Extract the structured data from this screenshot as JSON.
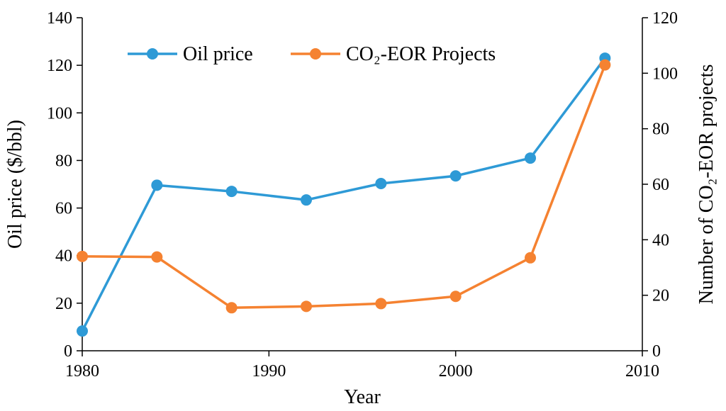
{
  "chart_data": {
    "type": "line",
    "title": "",
    "xlabel": "Year",
    "ylabel_left": "Oil price ($/bbl)",
    "ylabel_right": "Number of CO₂-EOR projects",
    "xlim": [
      1980,
      2010
    ],
    "ylim_left": [
      0,
      140
    ],
    "ylim_right": [
      0,
      120
    ],
    "x_ticks": [
      1980,
      1990,
      2000,
      2010
    ],
    "y_ticks_left": [
      0,
      20,
      40,
      60,
      80,
      100,
      120,
      140
    ],
    "y_ticks_right": [
      0,
      20,
      40,
      60,
      80,
      100,
      120
    ],
    "grid": false,
    "legend_position": "top",
    "series": [
      {
        "name": "Oil price",
        "axis": "left",
        "color": "#2E9AD6",
        "x": [
          1980,
          1984,
          1988,
          1992,
          1996,
          2000,
          2004,
          2008
        ],
        "values": [
          8.3,
          69.6,
          67,
          63.4,
          70.3,
          73.5,
          81,
          123
        ]
      },
      {
        "name": "CO₂-EOR Projects",
        "axis": "right",
        "color": "#F58231",
        "x": [
          1980,
          1984,
          1988,
          1992,
          1996,
          2000,
          2004,
          2008
        ],
        "values": [
          34,
          33.8,
          15.5,
          16,
          17,
          19.6,
          33.5,
          103
        ]
      }
    ]
  }
}
